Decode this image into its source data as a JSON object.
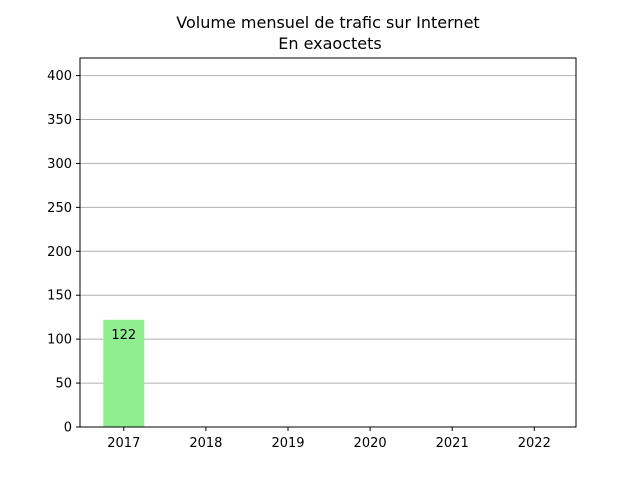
{
  "chart_data": {
    "type": "bar",
    "title": "Volume mensuel de trafic sur Internet",
    "subtitle": "En exaoctets",
    "xlabel": "",
    "ylabel": "",
    "categories": [
      "2017",
      "2018",
      "2019",
      "2020",
      "2021",
      "2022"
    ],
    "values": [
      122,
      null,
      null,
      null,
      null,
      null
    ],
    "data_labels": [
      "122",
      "",
      "",
      "",
      "",
      ""
    ],
    "ylim": [
      0,
      420
    ],
    "yticks": [
      0,
      50,
      100,
      150,
      200,
      250,
      300,
      350,
      400
    ],
    "grid": "y",
    "legend": "none",
    "bar_color": "#90ee90",
    "grid_color": "#b0b0b0"
  }
}
